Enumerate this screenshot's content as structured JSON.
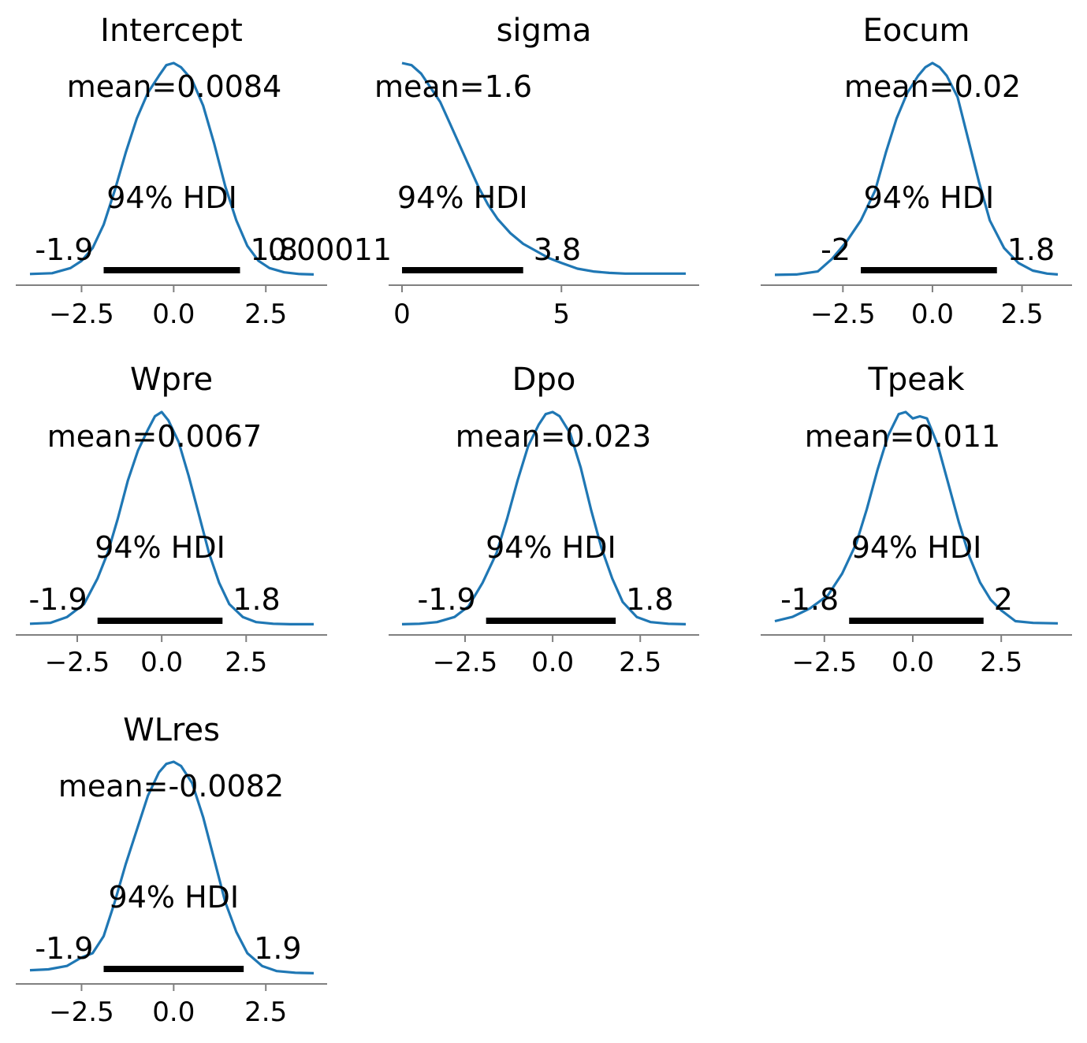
{
  "chart_data": [
    {
      "type": "area",
      "title": "Intercept",
      "mean_label": "mean=0.0084",
      "hdi_label": "94% HDI",
      "hdi": [
        -1.9,
        1.8
      ],
      "hdi_low_label": "-1.9",
      "hdi_high_label": "1.8",
      "xlim": [
        -3.9,
        3.8
      ],
      "xticks": [
        -2.5,
        0.0,
        2.5
      ],
      "xtick_labels": [
        "−2.5",
        "0.0",
        "2.5"
      ],
      "x": [
        -3.9,
        -3.3,
        -2.8,
        -2.5,
        -2.2,
        -1.9,
        -1.6,
        -1.3,
        -1.0,
        -0.7,
        -0.4,
        -0.2,
        0.0,
        0.2,
        0.5,
        0.8,
        1.1,
        1.4,
        1.7,
        2.0,
        2.3,
        2.6,
        3.0,
        3.4,
        3.8
      ],
      "y": [
        0.004,
        0.006,
        0.018,
        0.035,
        0.065,
        0.12,
        0.2,
        0.29,
        0.37,
        0.43,
        0.47,
        0.495,
        0.5,
        0.49,
        0.46,
        0.4,
        0.31,
        0.21,
        0.13,
        0.07,
        0.035,
        0.018,
        0.008,
        0.004,
        0.003
      ]
    },
    {
      "type": "area",
      "title": "sigma",
      "mean_label": "mean=1.6",
      "hdi_label": "94% HDI",
      "hdi": [
        0.00011,
        3.8
      ],
      "hdi_low_label": "0.00011",
      "hdi_high_label": "3.8",
      "xlim": [
        0.0,
        8.9
      ],
      "xticks": [
        0,
        5
      ],
      "xtick_labels": [
        "0",
        "5"
      ],
      "x": [
        0.0,
        0.3,
        0.6,
        0.9,
        1.2,
        1.5,
        1.8,
        2.1,
        2.4,
        2.7,
        3.0,
        3.4,
        3.8,
        4.2,
        4.6,
        5.0,
        5.5,
        6.0,
        6.5,
        7.0,
        7.5,
        8.0,
        8.5,
        8.9
      ],
      "y": [
        0.3,
        0.297,
        0.285,
        0.265,
        0.245,
        0.215,
        0.185,
        0.155,
        0.125,
        0.1,
        0.08,
        0.06,
        0.045,
        0.035,
        0.025,
        0.018,
        0.01,
        0.006,
        0.004,
        0.003,
        0.003,
        0.003,
        0.003,
        0.003
      ]
    },
    {
      "type": "area",
      "title": "Eocum",
      "mean_label": "mean=0.02",
      "hdi_label": "94% HDI",
      "hdi": [
        -2.0,
        1.8
      ],
      "hdi_low_label": "-2",
      "hdi_high_label": "1.8",
      "xlim": [
        -4.4,
        3.5
      ],
      "xticks": [
        -2.5,
        0.0,
        2.5
      ],
      "xtick_labels": [
        "−2.5",
        "0.0",
        "2.5"
      ],
      "x": [
        -4.4,
        -3.8,
        -3.2,
        -2.8,
        -2.4,
        -2.0,
        -1.6,
        -1.3,
        -1.0,
        -0.7,
        -0.4,
        -0.2,
        0.0,
        0.2,
        0.4,
        0.7,
        1.0,
        1.3,
        1.6,
        2.0,
        2.4,
        2.8,
        3.2,
        3.5
      ],
      "y": [
        0.002,
        0.003,
        0.01,
        0.04,
        0.08,
        0.13,
        0.2,
        0.29,
        0.37,
        0.43,
        0.47,
        0.49,
        0.5,
        0.49,
        0.47,
        0.42,
        0.32,
        0.22,
        0.13,
        0.065,
        0.03,
        0.012,
        0.005,
        0.003
      ]
    },
    {
      "type": "area",
      "title": "Wpre",
      "mean_label": "mean=0.0067",
      "hdi_label": "94% HDI",
      "hdi": [
        -1.9,
        1.8
      ],
      "hdi_low_label": "-1.9",
      "hdi_high_label": "1.8",
      "xlim": [
        -3.9,
        4.5
      ],
      "xticks": [
        -2.5,
        0.0,
        2.5
      ],
      "xtick_labels": [
        "−2.5",
        "0.0",
        "2.5"
      ],
      "x": [
        -3.9,
        -3.3,
        -2.8,
        -2.3,
        -1.9,
        -1.6,
        -1.3,
        -1.0,
        -0.7,
        -0.4,
        -0.2,
        0.0,
        0.2,
        0.5,
        0.8,
        1.1,
        1.4,
        1.7,
        2.0,
        2.4,
        2.8,
        3.3,
        3.8,
        4.5
      ],
      "y": [
        0.004,
        0.006,
        0.02,
        0.05,
        0.11,
        0.17,
        0.25,
        0.34,
        0.41,
        0.46,
        0.49,
        0.5,
        0.48,
        0.43,
        0.35,
        0.26,
        0.17,
        0.1,
        0.05,
        0.02,
        0.008,
        0.004,
        0.003,
        0.003
      ]
    },
    {
      "type": "area",
      "title": "Dpo",
      "mean_label": "mean=0.023",
      "hdi_label": "94% HDI",
      "hdi": [
        -1.9,
        1.8
      ],
      "hdi_low_label": "-1.9",
      "hdi_high_label": "1.8",
      "xlim": [
        -4.3,
        3.8
      ],
      "xticks": [
        -2.5,
        0.0,
        2.5
      ],
      "xtick_labels": [
        "−2.5",
        "0.0",
        "2.5"
      ],
      "x": [
        -4.3,
        -3.8,
        -3.3,
        -2.8,
        -2.4,
        -2.0,
        -1.6,
        -1.3,
        -1.0,
        -0.7,
        -0.4,
        -0.2,
        0.0,
        0.2,
        0.5,
        0.8,
        1.1,
        1.4,
        1.7,
        2.0,
        2.4,
        2.8,
        3.3,
        3.8
      ],
      "y": [
        0.003,
        0.004,
        0.008,
        0.02,
        0.045,
        0.1,
        0.17,
        0.25,
        0.34,
        0.42,
        0.47,
        0.495,
        0.5,
        0.49,
        0.45,
        0.37,
        0.27,
        0.18,
        0.11,
        0.055,
        0.02,
        0.008,
        0.004,
        0.003
      ]
    },
    {
      "type": "area",
      "title": "Tpeak",
      "mean_label": "mean=0.011",
      "hdi_label": "94% HDI",
      "hdi": [
        -1.8,
        2.0
      ],
      "hdi_low_label": "-1.8",
      "hdi_high_label": "2",
      "xlim": [
        -3.9,
        4.1
      ],
      "xticks": [
        -2.5,
        0.0,
        2.5
      ],
      "xtick_labels": [
        "−2.5",
        "0.0",
        "2.5"
      ],
      "x": [
        -3.9,
        -3.4,
        -2.9,
        -2.4,
        -2.0,
        -1.6,
        -1.3,
        -1.0,
        -0.7,
        -0.4,
        -0.2,
        0.0,
        0.2,
        0.4,
        0.7,
        1.0,
        1.3,
        1.6,
        1.9,
        2.2,
        2.5,
        2.9,
        3.4,
        4.1
      ],
      "y": [
        0.01,
        0.02,
        0.04,
        0.07,
        0.12,
        0.19,
        0.27,
        0.36,
        0.44,
        0.49,
        0.495,
        0.48,
        0.485,
        0.48,
        0.42,
        0.33,
        0.24,
        0.16,
        0.1,
        0.06,
        0.035,
        0.01,
        0.006,
        0.005
      ]
    },
    {
      "type": "area",
      "title": "WLres",
      "mean_label": "mean=-0.0082",
      "hdi_label": "94% HDI",
      "hdi": [
        -1.9,
        1.9
      ],
      "hdi_low_label": "-1.9",
      "hdi_high_label": "1.9",
      "xlim": [
        -3.9,
        3.8
      ],
      "xticks": [
        -2.5,
        0.0,
        2.5
      ],
      "xtick_labels": [
        "−2.5",
        "0.0",
        "2.5"
      ],
      "x": [
        -3.9,
        -3.4,
        -2.9,
        -2.5,
        -2.2,
        -1.9,
        -1.6,
        -1.3,
        -1.0,
        -0.7,
        -0.4,
        -0.2,
        0.0,
        0.2,
        0.5,
        0.8,
        1.1,
        1.4,
        1.7,
        2.0,
        2.4,
        2.8,
        3.3,
        3.8
      ],
      "y": [
        0.01,
        0.012,
        0.02,
        0.04,
        0.05,
        0.09,
        0.17,
        0.26,
        0.34,
        0.42,
        0.475,
        0.495,
        0.5,
        0.49,
        0.45,
        0.37,
        0.27,
        0.17,
        0.1,
        0.05,
        0.02,
        0.008,
        0.004,
        0.003
      ]
    }
  ],
  "colors": {
    "line": "#1f77b4",
    "hdi_bar": "#000000",
    "axis": "#808080",
    "text": "#000000"
  }
}
